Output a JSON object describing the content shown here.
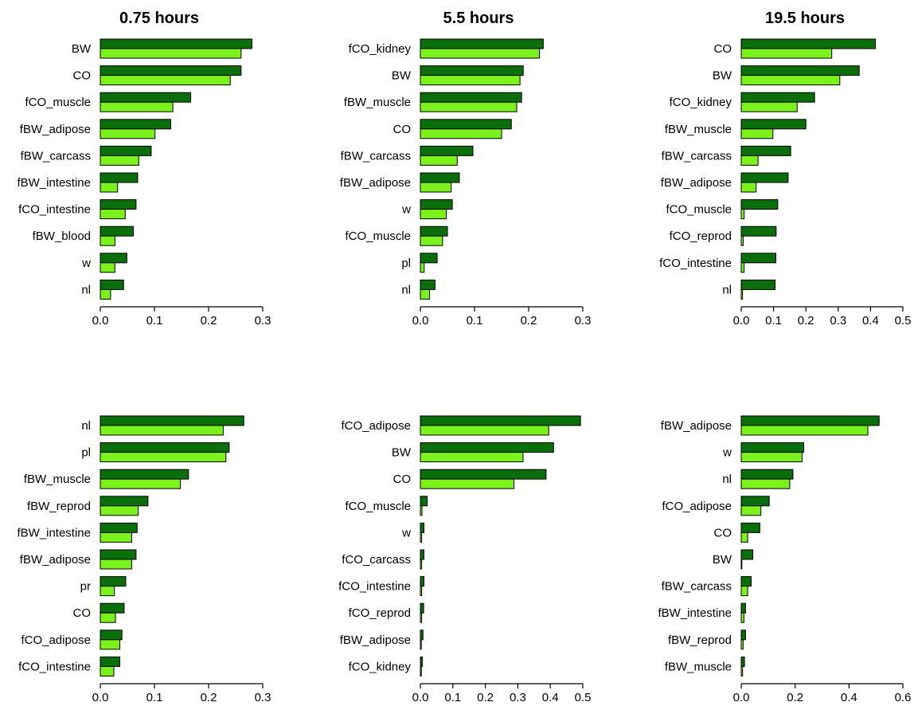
{
  "colors": {
    "dark": "#0a6f0a",
    "light": "#7bf21b",
    "outline": "#000000"
  },
  "chart_data": [
    {
      "type": "bar",
      "orientation": "horizontal",
      "title": "0.75 hours",
      "categories": [
        "BW",
        "CO",
        "fCO_muscle",
        "fBW_adipose",
        "fBW_carcass",
        "fBW_intestine",
        "fCO_intestine",
        "fBW_blood",
        "w",
        "nl"
      ],
      "series": [
        {
          "values": [
            0.28,
            0.26,
            0.167,
            0.13,
            0.094,
            0.069,
            0.066,
            0.061,
            0.049,
            0.043
          ]
        },
        {
          "values": [
            0.26,
            0.24,
            0.134,
            0.101,
            0.071,
            0.032,
            0.046,
            0.027,
            0.027,
            0.019
          ]
        }
      ],
      "xlim": [
        0,
        0.3
      ],
      "xticks": [
        "0.0",
        "0.1",
        "0.2",
        "0.3"
      ]
    },
    {
      "type": "bar",
      "orientation": "horizontal",
      "title": "5.5 hours",
      "categories": [
        "fCO_kidney",
        "BW",
        "fBW_muscle",
        "CO",
        "fBW_carcass",
        "fBW_adipose",
        "w",
        "fCO_muscle",
        "pl",
        "nl"
      ],
      "series": [
        {
          "values": [
            0.227,
            0.19,
            0.187,
            0.168,
            0.097,
            0.072,
            0.059,
            0.05,
            0.031,
            0.027
          ]
        },
        {
          "values": [
            0.22,
            0.184,
            0.178,
            0.15,
            0.068,
            0.057,
            0.048,
            0.041,
            0.007,
            0.017
          ]
        }
      ],
      "xlim": [
        0,
        0.3
      ],
      "xticks": [
        "0.0",
        "0.1",
        "0.2",
        "0.3"
      ]
    },
    {
      "type": "bar",
      "orientation": "horizontal",
      "title": "19.5 hours",
      "categories": [
        "CO",
        "BW",
        "fCO_kidney",
        "fBW_muscle",
        "fBW_carcass",
        "fBW_adipose",
        "fCO_muscle",
        "fCO_reprod",
        "fCO_intestine",
        "nl"
      ],
      "series": [
        {
          "values": [
            0.415,
            0.365,
            0.227,
            0.2,
            0.153,
            0.145,
            0.113,
            0.108,
            0.107,
            0.105
          ]
        },
        {
          "values": [
            0.28,
            0.305,
            0.173,
            0.098,
            0.052,
            0.046,
            0.009,
            0.006,
            0.009,
            0.004
          ]
        }
      ],
      "xlim": [
        0,
        0.5
      ],
      "xticks": [
        "0.0",
        "0.1",
        "0.2",
        "0.3",
        "0.4",
        "0.5"
      ]
    },
    {
      "type": "bar",
      "orientation": "horizontal",
      "title": "",
      "categories": [
        "nl",
        "pl",
        "fBW_muscle",
        "fBW_reprod",
        "fBW_intestine",
        "fBW_adipose",
        "pr",
        "CO",
        "fCO_adipose",
        "fCO_intestine"
      ],
      "series": [
        {
          "values": [
            0.265,
            0.238,
            0.163,
            0.088,
            0.068,
            0.066,
            0.047,
            0.044,
            0.04,
            0.036
          ]
        },
        {
          "values": [
            0.227,
            0.232,
            0.148,
            0.07,
            0.058,
            0.058,
            0.026,
            0.028,
            0.036,
            0.025
          ]
        }
      ],
      "xlim": [
        0,
        0.3
      ],
      "xticks": [
        "0.0",
        "0.1",
        "0.2",
        "0.3"
      ]
    },
    {
      "type": "bar",
      "orientation": "horizontal",
      "title": "",
      "categories": [
        "fCO_adipose",
        "BW",
        "CO",
        "fCO_muscle",
        "w",
        "fCO_carcass",
        "fCO_intestine",
        "fCO_reprod",
        "fBW_adipose",
        "fCO_kidney"
      ],
      "series": [
        {
          "values": [
            0.493,
            0.41,
            0.387,
            0.021,
            0.011,
            0.011,
            0.011,
            0.01,
            0.008,
            0.006
          ]
        },
        {
          "values": [
            0.395,
            0.316,
            0.288,
            0.005,
            0.004,
            0.004,
            0.004,
            0.004,
            0.003,
            0.003
          ]
        }
      ],
      "xlim": [
        0,
        0.5
      ],
      "xticks": [
        "0.0",
        "0.1",
        "0.2",
        "0.3",
        "0.4",
        "0.5"
      ]
    },
    {
      "type": "bar",
      "orientation": "horizontal",
      "title": "",
      "categories": [
        "fBW_adipose",
        "w",
        "nl",
        "fCO_adipose",
        "CO",
        "BW",
        "fBW_carcass",
        "fBW_intestine",
        "fBW_reprod",
        "fBW_muscle"
      ],
      "series": [
        {
          "values": [
            0.512,
            0.232,
            0.192,
            0.104,
            0.069,
            0.043,
            0.037,
            0.016,
            0.016,
            0.012
          ]
        },
        {
          "values": [
            0.47,
            0.226,
            0.18,
            0.073,
            0.024,
            0.002,
            0.024,
            0.01,
            0.007,
            0.005
          ]
        }
      ],
      "xlim": [
        0,
        0.6
      ],
      "xticks": [
        "0.0",
        "0.2",
        "0.4",
        "0.6"
      ]
    }
  ]
}
